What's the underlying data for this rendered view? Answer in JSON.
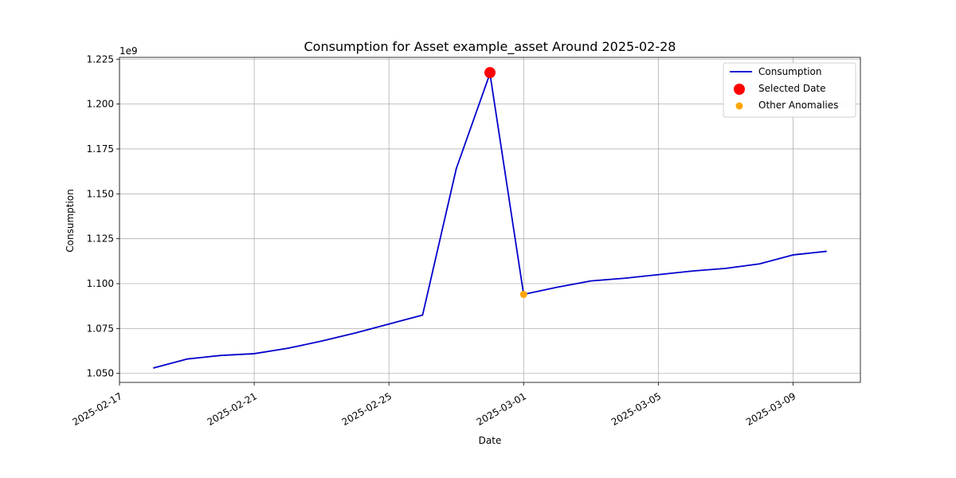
{
  "chart_data": {
    "type": "line",
    "title": "Consumption for Asset example_asset Around 2025-02-28",
    "xlabel": "Date",
    "ylabel": "Consumption",
    "y_offset_label": "1e9",
    "xlim": [
      "2025-02-17",
      "2025-03-11"
    ],
    "ylim": [
      1.045,
      1.226
    ],
    "grid": true,
    "legend_position": "top-right",
    "x_ticks": [
      "2025-02-17",
      "2025-02-21",
      "2025-02-25",
      "2025-03-01",
      "2025-03-05",
      "2025-03-09"
    ],
    "y_ticks": [
      "1.050",
      "1.075",
      "1.100",
      "1.125",
      "1.150",
      "1.175",
      "1.200",
      "1.225"
    ],
    "series": [
      {
        "name": "Consumption",
        "color": "#0000cc",
        "x": [
          "2025-02-18",
          "2025-02-19",
          "2025-02-20",
          "2025-02-21",
          "2025-02-22",
          "2025-02-23",
          "2025-02-24",
          "2025-02-25",
          "2025-02-26",
          "2025-02-27",
          "2025-02-28",
          "2025-03-01",
          "2025-03-02",
          "2025-03-03",
          "2025-03-04",
          "2025-03-05",
          "2025-03-06",
          "2025-03-07",
          "2025-03-08",
          "2025-03-09",
          "2025-03-10"
        ],
        "y": [
          1.053,
          1.058,
          1.06,
          1.061,
          1.064,
          1.068,
          1.0725,
          1.0775,
          1.0825,
          1.164,
          1.217,
          1.094,
          1.098,
          1.1015,
          1.103,
          1.105,
          1.107,
          1.1085,
          1.111,
          1.116,
          1.118
        ]
      }
    ],
    "markers": [
      {
        "name": "Selected Date",
        "color": "#ff0000",
        "x": "2025-02-28",
        "y": 1.2175
      },
      {
        "name": "Other Anomalies",
        "color": "#ffa500",
        "x": "2025-03-01",
        "y": 1.094
      }
    ]
  }
}
